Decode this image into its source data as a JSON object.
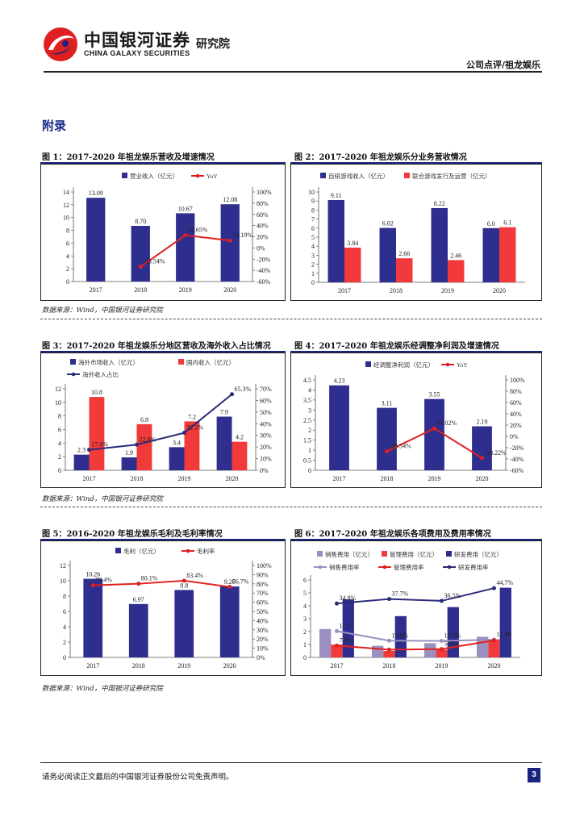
{
  "header": {
    "company_cn": "中国银河证券",
    "company_en": "CHINA GALAXY SECURITIES",
    "institute": "研究院",
    "breadcrumb": "公司点评/祖龙娱乐",
    "brand_red": "#e02020",
    "brand_blue": "#1a237e"
  },
  "section_title": "附录",
  "figures": [
    {
      "title": "图 1：2017-2020 年祖龙娱乐营收及增速情况"
    },
    {
      "title": "图 2：2017-2020 年祖龙娱乐分业务营收情况"
    },
    {
      "title": "图 3：2017-2020 年祖龙娱乐分地区营收及海外收入占比情况"
    },
    {
      "title": "图 4：2017-2020 年祖龙娱乐经调整净利润及增速情况"
    },
    {
      "title": "图 5：2016-2020 年祖龙娱乐毛利及毛利率情况"
    },
    {
      "title": "图 6：2017-2020 年祖龙娱乐各项费用及费用率情况"
    }
  ],
  "sources": {
    "row1": "数据来源：Wind，中国银河证券研究院",
    "row2": "数据来源：Wind，中国银河证券研究院",
    "row3": "数据来源：Wind，中国银河证券研究院"
  },
  "footer": {
    "disclaimer": "请务必阅读正文最后的中国银河证券股份公司免责声明。",
    "page": "3"
  },
  "colors": {
    "bar_blue": "#2e2e8f",
    "bar_red": "#f23a3a",
    "bar_gray": "#9a8fc0",
    "line_red": "#e02020",
    "line_navy": "#2a2a7a"
  },
  "chart_data": [
    {
      "id": "fig1",
      "type": "bar+line",
      "title": "2017-2020 年祖龙娱乐营收及增速情况",
      "categories": [
        "2017",
        "2018",
        "2019",
        "2020"
      ],
      "series": [
        {
          "name": "营业收入（亿元）",
          "kind": "bar",
          "axis": "left",
          "values": [
            13.09,
            8.7,
            10.67,
            12.08
          ],
          "labels": [
            "13.09",
            "8.70",
            "10.67",
            "12.08"
          ]
        },
        {
          "name": "YoY",
          "kind": "line",
          "axis": "right",
          "values": [
            null,
            -33.54,
            22.65,
            13.19
          ],
          "labels": [
            "",
            "-33.54%",
            "22.65%",
            "13.19%"
          ]
        }
      ],
      "left_axis": {
        "min": 0,
        "max": 14,
        "step": 2,
        "ticks": [
          "0",
          "2",
          "4",
          "6",
          "8",
          "10",
          "12",
          "14"
        ]
      },
      "right_axis": {
        "min": -60,
        "max": 100,
        "step": 20,
        "ticks": [
          "-60%",
          "-40%",
          "-20%",
          "0%",
          "20%",
          "40%",
          "60%",
          "80%",
          "100%"
        ]
      }
    },
    {
      "id": "fig2",
      "type": "grouped-bar",
      "title": "2017-2020 年祖龙娱乐分业务营收情况",
      "categories": [
        "2017",
        "2018",
        "2019",
        "2020"
      ],
      "series": [
        {
          "name": "自研游戏收入（亿元）",
          "values": [
            9.11,
            6.02,
            8.22,
            6.0
          ],
          "labels": [
            "9.11",
            "6.02",
            "8.22",
            "6.0"
          ]
        },
        {
          "name": "联合游戏发行及运营（亿元）",
          "values": [
            3.84,
            2.66,
            2.46,
            6.1
          ],
          "labels": [
            "3.84",
            "2.66",
            "2.46",
            "6.1"
          ]
        }
      ],
      "left_axis": {
        "min": 0,
        "max": 10,
        "step": 1,
        "ticks": [
          "0",
          "1",
          "2",
          "3",
          "4",
          "5",
          "6",
          "7",
          "8",
          "9",
          "10"
        ]
      }
    },
    {
      "id": "fig3",
      "type": "grouped-bar+line",
      "title": "2017-2020 年祖龙娱乐分地区营收及海外收入占比情况",
      "categories": [
        "2017",
        "2018",
        "2019",
        "2020"
      ],
      "series": [
        {
          "name": "海外市场收入（亿元）",
          "kind": "bar",
          "axis": "left",
          "values": [
            2.3,
            1.9,
            3.4,
            7.9
          ],
          "labels": [
            "2.3",
            "1.9",
            "3.4",
            "7.9"
          ]
        },
        {
          "name": "国内收入（亿元）",
          "kind": "bar",
          "axis": "left",
          "values": [
            10.8,
            6.8,
            7.2,
            4.2
          ],
          "labels": [
            "10.8",
            "6.8",
            "7.2",
            "4.2"
          ]
        },
        {
          "name": "海外收入占比",
          "kind": "line",
          "axis": "right",
          "values": [
            17.6,
            22.0,
            32.2,
            65.3
          ],
          "labels": [
            "17.6%",
            "22.0%",
            "32.2%",
            "65.3%"
          ]
        }
      ],
      "left_axis": {
        "min": 0,
        "max": 12,
        "step": 2,
        "ticks": [
          "0",
          "2",
          "4",
          "6",
          "8",
          "10",
          "12"
        ]
      },
      "right_axis": {
        "min": 0,
        "max": 70,
        "step": 10,
        "ticks": [
          "0%",
          "10%",
          "20%",
          "30%",
          "40%",
          "50%",
          "60%",
          "70%"
        ]
      }
    },
    {
      "id": "fig4",
      "type": "bar+line",
      "title": "2017-2020 年祖龙娱乐经调整净利润及增速情况",
      "categories": [
        "2017",
        "2018",
        "2019",
        "2020"
      ],
      "series": [
        {
          "name": "经调整净利润（亿元）",
          "kind": "bar",
          "axis": "left",
          "values": [
            4.23,
            3.11,
            3.55,
            2.19
          ],
          "labels": [
            "4.23",
            "3.11",
            "3.55",
            "2.19"
          ]
        },
        {
          "name": "YoY",
          "kind": "line",
          "axis": "right",
          "values": [
            null,
            -26.54,
            14.02,
            -38.22
          ],
          "labels": [
            "",
            "-26.54%",
            "14.02%",
            "-38.22%"
          ]
        }
      ],
      "left_axis": {
        "min": 0,
        "max": 4.5,
        "step": 0.5,
        "ticks": [
          "0",
          "0.5",
          "1",
          "1.5",
          "2",
          "2.5",
          "3",
          "3.5",
          "4",
          "4.5"
        ]
      },
      "right_axis": {
        "min": -60,
        "max": 100,
        "step": 20,
        "ticks": [
          "-60%",
          "-40%",
          "-20%",
          "0%",
          "20%",
          "40%",
          "60%",
          "80%",
          "100%"
        ]
      }
    },
    {
      "id": "fig5",
      "type": "bar+line",
      "title": "2016-2020 年祖龙娱乐毛利及毛利率情况",
      "categories": [
        "2017",
        "2018",
        "2019",
        "2020"
      ],
      "series": [
        {
          "name": "毛利（亿元）",
          "kind": "bar",
          "axis": "left",
          "values": [
            10.26,
            6.97,
            8.8,
            9.26
          ],
          "labels": [
            "10.26",
            "6.97",
            "8.8",
            "9.26"
          ]
        },
        {
          "name": "毛利率",
          "kind": "line",
          "axis": "right",
          "values": [
            78.4,
            80.1,
            83.4,
            76.7
          ],
          "labels": [
            "78.4%",
            "80.1%",
            "83.4%",
            "76.7%"
          ]
        }
      ],
      "left_axis": {
        "min": 0,
        "max": 12,
        "step": 2,
        "ticks": [
          "0",
          "2",
          "4",
          "6",
          "8",
          "10",
          "12"
        ]
      },
      "right_axis": {
        "min": 0,
        "max": 100,
        "step": 10,
        "ticks": [
          "0%",
          "10%",
          "20%",
          "30%",
          "40%",
          "50%",
          "60%",
          "70%",
          "80%",
          "90%",
          "100%"
        ]
      }
    },
    {
      "id": "fig6",
      "type": "grouped-bar+line",
      "title": "2017-2020 年祖龙娱乐各项费用及费用率情况",
      "categories": [
        "2017",
        "2018",
        "2019",
        "2020"
      ],
      "series": [
        {
          "name": "销售费用（亿元）",
          "kind": "bar",
          "axis": "left",
          "values": [
            2.2,
            0.9,
            1.1,
            1.6
          ],
          "labels": [
            "",
            "",
            "",
            ""
          ]
        },
        {
          "name": "管理费用（亿元）",
          "kind": "bar",
          "axis": "left",
          "values": [
            1.0,
            0.5,
            0.6,
            1.4
          ],
          "labels": [
            "",
            "",
            "",
            ""
          ]
        },
        {
          "name": "研发费用（亿元）",
          "kind": "bar",
          "axis": "left",
          "values": [
            4.5,
            3.2,
            3.9,
            5.4
          ],
          "labels": [
            "",
            "",
            "",
            ""
          ]
        },
        {
          "name": "销售费用率",
          "kind": "line",
          "axis": "right",
          "values": [
            17.0,
            10.8,
            10.7,
            11.49
          ],
          "labels": [
            "17.0",
            "10.8%",
            "10.7%",
            "11.49"
          ]
        },
        {
          "name": "管理费用率",
          "kind": "line",
          "axis": "right",
          "values": [
            7.6,
            5.0,
            5.4,
            11.0
          ],
          "labels": [
            "7.6%",
            "",
            "5.4%",
            ""
          ]
        },
        {
          "name": "研发费用率",
          "kind": "line",
          "axis": "right",
          "values": [
            34.8,
            37.7,
            36.5,
            44.7
          ],
          "labels": [
            "34.8%",
            "37.7%",
            "36.5%",
            "44.7%"
          ]
        }
      ],
      "left_axis": {
        "min": 0,
        "max": 6,
        "step": 1,
        "ticks": [
          "0",
          "1",
          "2",
          "3",
          "4",
          "5",
          "6"
        ]
      },
      "right_axis": {
        "min": 0,
        "max": 50,
        "step": 10,
        "ticks": [],
        "hidden": true
      }
    }
  ]
}
